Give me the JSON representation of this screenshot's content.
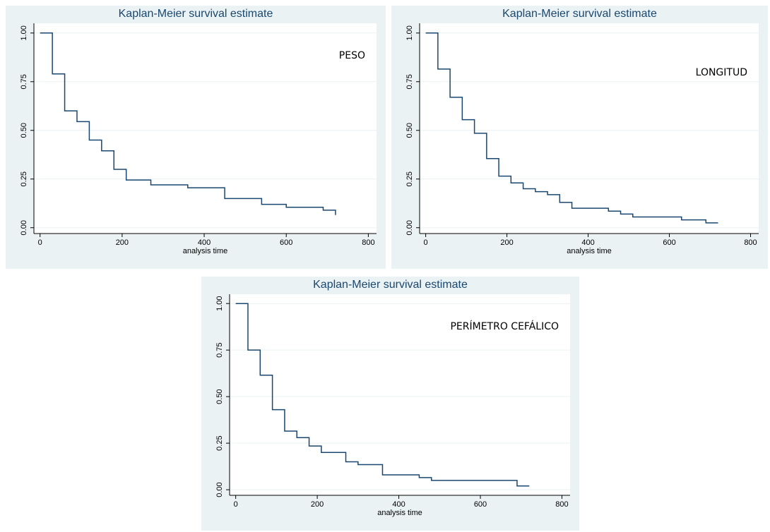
{
  "chart_data": [
    {
      "type": "step",
      "title": "Kaplan-Meier survival estimate",
      "annotation": "PESO",
      "x_label": "analysis time",
      "color": "#1a476f",
      "grid": true,
      "x": [
        0,
        30,
        60,
        90,
        120,
        150,
        180,
        210,
        270,
        360,
        450,
        540,
        600,
        690,
        720
      ],
      "values": [
        1,
        0.79,
        0.6,
        0.545,
        0.45,
        0.395,
        0.3,
        0.245,
        0.22,
        0.205,
        0.15,
        0.12,
        0.105,
        0.09,
        0.065
      ],
      "xlim": [
        -15,
        820
      ],
      "ylim": [
        -0.03,
        1.05
      ],
      "xticks": [
        0,
        200,
        400,
        600,
        800
      ],
      "yticks": [
        {
          "value": 0,
          "label": "0.00"
        },
        {
          "value": 0.25,
          "label": "0.25"
        },
        {
          "value": 0.5,
          "label": "0.50"
        },
        {
          "value": 0.75,
          "label": "0.75"
        },
        {
          "value": 1,
          "label": "1.00"
        }
      ]
    },
    {
      "type": "step",
      "title": "Kaplan-Meier survival estimate",
      "annotation": "LONGITUD",
      "x_label": "analysis time",
      "color": "#1a476f",
      "grid": true,
      "x": [
        0,
        30,
        60,
        90,
        120,
        150,
        180,
        210,
        240,
        270,
        300,
        330,
        360,
        450,
        480,
        510,
        630,
        690,
        720
      ],
      "values": [
        1,
        0.815,
        0.67,
        0.555,
        0.485,
        0.355,
        0.265,
        0.23,
        0.2,
        0.185,
        0.17,
        0.13,
        0.1,
        0.085,
        0.07,
        0.055,
        0.04,
        0.025,
        0.025
      ],
      "xlim": [
        -15,
        820
      ],
      "ylim": [
        -0.03,
        1.05
      ],
      "xticks": [
        0,
        200,
        400,
        600,
        800
      ],
      "yticks": [
        {
          "value": 0,
          "label": "0.00"
        },
        {
          "value": 0.25,
          "label": "0.25"
        },
        {
          "value": 0.5,
          "label": "0.50"
        },
        {
          "value": 0.75,
          "label": "0.75"
        },
        {
          "value": 1,
          "label": "1.00"
        }
      ]
    },
    {
      "type": "step",
      "title": "Kaplan-Meier survival estimate",
      "annotation": "PERÍMETRO CEFÁLICO",
      "x_label": "analysis time",
      "color": "#1a476f",
      "grid": true,
      "x": [
        0,
        30,
        60,
        90,
        120,
        150,
        180,
        210,
        270,
        300,
        360,
        450,
        480,
        690,
        720
      ],
      "values": [
        1,
        0.75,
        0.615,
        0.43,
        0.315,
        0.28,
        0.235,
        0.2,
        0.15,
        0.135,
        0.08,
        0.065,
        0.05,
        0.02,
        0.02
      ],
      "xlim": [
        -15,
        820
      ],
      "ylim": [
        -0.03,
        1.05
      ],
      "xticks": [
        0,
        200,
        400,
        600,
        800
      ],
      "yticks": [
        {
          "value": 0,
          "label": "0.00"
        },
        {
          "value": 0.25,
          "label": "0.25"
        },
        {
          "value": 0.5,
          "label": "0.50"
        },
        {
          "value": 0.75,
          "label": "0.75"
        },
        {
          "value": 1,
          "label": "1.00"
        }
      ]
    }
  ]
}
